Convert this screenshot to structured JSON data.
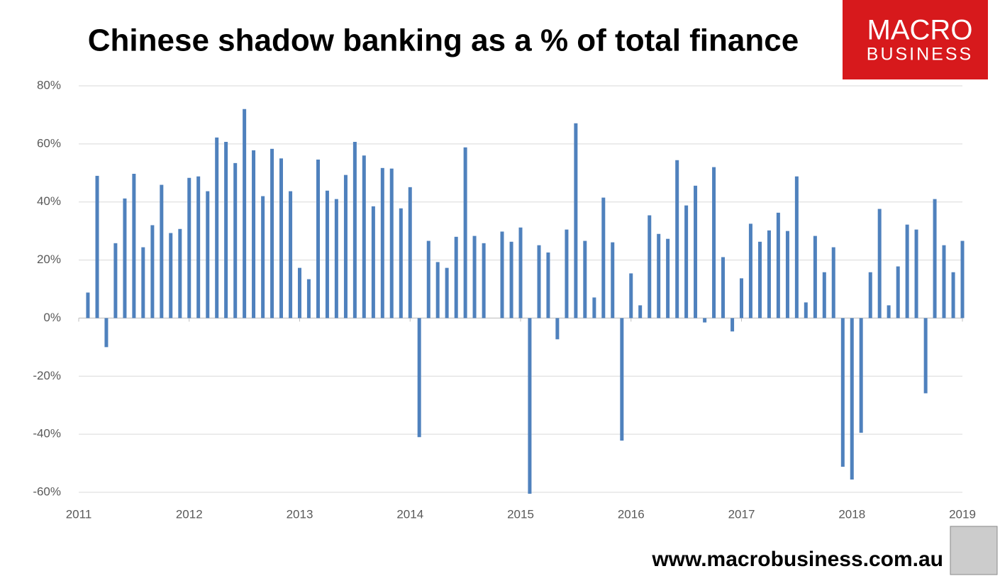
{
  "chart_data": {
    "type": "bar",
    "title": "Chinese shadow banking as a % of total finance",
    "color": "#4f81bd",
    "grid": true,
    "xlim": [
      2011,
      2019
    ],
    "xticks": [
      2011,
      2012,
      2013,
      2014,
      2015,
      2016,
      2017,
      2018,
      2019
    ],
    "ylim": [
      -60,
      80
    ],
    "yticks": [
      {
        "value": -60,
        "label": "-60%"
      },
      {
        "value": -40,
        "label": "-40%"
      },
      {
        "value": -20,
        "label": "-20%"
      },
      {
        "value": 0,
        "label": "0%"
      },
      {
        "value": 20,
        "label": "20%"
      },
      {
        "value": 40,
        "label": "40%"
      },
      {
        "value": 60,
        "label": "60%"
      },
      {
        "value": 80,
        "label": "80%"
      }
    ],
    "x": [
      2011.083,
      2011.167,
      2011.25,
      2011.333,
      2011.417,
      2011.5,
      2011.583,
      2011.667,
      2011.75,
      2011.833,
      2011.917,
      2012,
      2012.083,
      2012.167,
      2012.25,
      2012.333,
      2012.417,
      2012.5,
      2012.583,
      2012.667,
      2012.75,
      2012.833,
      2012.917,
      2013,
      2013.083,
      2013.167,
      2013.25,
      2013.333,
      2013.417,
      2013.5,
      2013.583,
      2013.667,
      2013.75,
      2013.833,
      2013.917,
      2014,
      2014.083,
      2014.167,
      2014.25,
      2014.333,
      2014.417,
      2014.5,
      2014.583,
      2014.667,
      2014.75,
      2014.833,
      2014.917,
      2015,
      2015.083,
      2015.167,
      2015.25,
      2015.333,
      2015.417,
      2015.5,
      2015.583,
      2015.667,
      2015.75,
      2015.833,
      2015.917,
      2016,
      2016.083,
      2016.167,
      2016.25,
      2016.333,
      2016.417,
      2016.5,
      2016.583,
      2016.667,
      2016.75,
      2016.833,
      2016.917,
      2017,
      2017.083,
      2017.167,
      2017.25,
      2017.333,
      2017.417,
      2017.5,
      2017.583,
      2017.667,
      2017.75,
      2017.833,
      2017.917,
      2018,
      2018.083,
      2018.167,
      2018.25,
      2018.333,
      2018.417,
      2018.5,
      2018.583,
      2018.667,
      2018.75,
      2018.833,
      2018.917,
      2019
    ],
    "values": [
      8.8,
      49,
      -10,
      25.8,
      41.2,
      49.7,
      24.4,
      32,
      45.9,
      29.3,
      30.7,
      48.3,
      48.8,
      43.7,
      62.2,
      60.7,
      53.4,
      72,
      57.8,
      42,
      58.3,
      55,
      43.7,
      17.3,
      13.4,
      54.6,
      43.9,
      41,
      49.3,
      60.7,
      56,
      38.5,
      51.7,
      51.5,
      37.8,
      45.1,
      -41,
      26.6,
      19.3,
      17.3,
      28,
      58.8,
      28.3,
      25.8,
      null,
      29.8,
      26.3,
      31.2,
      -60.5,
      25.1,
      22.6,
      -7.3,
      30.5,
      67.1,
      26.6,
      7.1,
      41.5,
      26.1,
      -42.2,
      15.4,
      4.4,
      35.4,
      29,
      27.3,
      54.4,
      38.8,
      45.6,
      -1.5,
      52,
      21,
      -4.6,
      13.7,
      32.5,
      26.3,
      30.2,
      36.3,
      30,
      48.8,
      5.4,
      28.3,
      15.8,
      24.4,
      -51.2,
      -55.6,
      -39.5,
      15.8,
      37.6,
      4.4,
      17.8,
      32.2,
      30.5,
      -25.9,
      41,
      25.1,
      15.8,
      26.6
    ]
  },
  "logo": {
    "line1": "MACRO",
    "line2": "BUSINESS"
  },
  "footer": "www.macrobusiness.com.au"
}
